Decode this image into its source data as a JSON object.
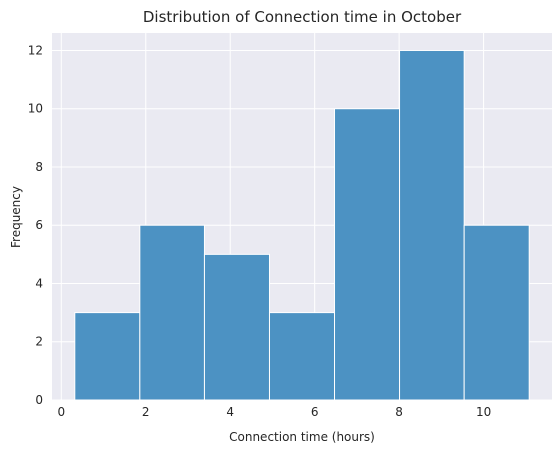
{
  "chart_data": {
    "type": "bar",
    "title": "Distribution of Connection time in October",
    "xlabel": "Connection time (hours)",
    "ylabel": "Frequency",
    "bins": [
      {
        "x0": 0.32,
        "x1": 1.86,
        "count": 3
      },
      {
        "x0": 1.86,
        "x1": 3.39,
        "count": 6
      },
      {
        "x0": 3.39,
        "x1": 4.93,
        "count": 5
      },
      {
        "x0": 4.93,
        "x1": 6.47,
        "count": 3
      },
      {
        "x0": 6.47,
        "x1": 8.01,
        "count": 10
      },
      {
        "x0": 8.01,
        "x1": 9.54,
        "count": 12
      },
      {
        "x0": 9.54,
        "x1": 11.08,
        "count": 6
      }
    ],
    "xlim": [
      -0.22,
      11.62
    ],
    "ylim": [
      0,
      12.6
    ],
    "xticks": [
      0,
      2,
      4,
      6,
      8,
      10
    ],
    "yticks": [
      0,
      2,
      4,
      6,
      8,
      10,
      12
    ],
    "grid": true,
    "bar_color": "#4c92c3",
    "background_color": "#eaeaf2"
  }
}
